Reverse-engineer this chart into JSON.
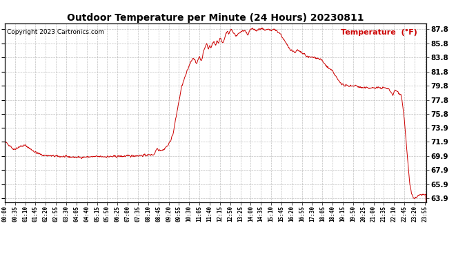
{
  "title": "Outdoor Temperature per Minute (24 Hours) 20230811",
  "copyright": "Copyright 2023 Cartronics.com",
  "legend_label": "Temperature  (°F)",
  "line_color": "#cc0000",
  "background_color": "#ffffff",
  "grid_color": "#b0b0b0",
  "yticks": [
    63.9,
    65.9,
    67.9,
    69.9,
    71.9,
    73.9,
    75.8,
    77.8,
    79.8,
    81.8,
    83.8,
    85.8,
    87.8
  ],
  "ymin": 63.4,
  "ymax": 88.6,
  "xtick_interval": 35,
  "keypoints": [
    [
      0,
      71.9
    ],
    [
      20,
      71.3
    ],
    [
      30,
      70.8
    ],
    [
      50,
      71.2
    ],
    [
      70,
      71.4
    ],
    [
      90,
      70.8
    ],
    [
      110,
      70.3
    ],
    [
      130,
      70.0
    ],
    [
      160,
      69.9
    ],
    [
      200,
      69.8
    ],
    [
      250,
      69.7
    ],
    [
      310,
      69.8
    ],
    [
      370,
      69.8
    ],
    [
      430,
      69.9
    ],
    [
      480,
      70.0
    ],
    [
      510,
      70.1
    ],
    [
      520,
      71.0
    ],
    [
      525,
      70.8
    ],
    [
      540,
      70.7
    ],
    [
      560,
      71.5
    ],
    [
      575,
      73.0
    ],
    [
      590,
      76.5
    ],
    [
      605,
      79.8
    ],
    [
      620,
      81.5
    ],
    [
      635,
      83.2
    ],
    [
      645,
      83.8
    ],
    [
      655,
      82.8
    ],
    [
      660,
      83.5
    ],
    [
      665,
      84.0
    ],
    [
      670,
      83.3
    ],
    [
      675,
      83.8
    ],
    [
      680,
      84.8
    ],
    [
      685,
      85.3
    ],
    [
      690,
      85.8
    ],
    [
      695,
      84.9
    ],
    [
      700,
      85.5
    ],
    [
      705,
      85.2
    ],
    [
      710,
      85.8
    ],
    [
      715,
      86.0
    ],
    [
      720,
      85.5
    ],
    [
      725,
      86.2
    ],
    [
      730,
      85.8
    ],
    [
      735,
      86.5
    ],
    [
      740,
      86.2
    ],
    [
      745,
      85.8
    ],
    [
      750,
      86.5
    ],
    [
      755,
      87.0
    ],
    [
      760,
      87.5
    ],
    [
      765,
      87.0
    ],
    [
      770,
      87.5
    ],
    [
      775,
      87.8
    ],
    [
      780,
      87.3
    ],
    [
      790,
      86.8
    ],
    [
      800,
      87.2
    ],
    [
      810,
      87.5
    ],
    [
      820,
      87.5
    ],
    [
      830,
      87.0
    ],
    [
      840,
      87.8
    ],
    [
      850,
      87.8
    ],
    [
      860,
      87.5
    ],
    [
      870,
      87.8
    ],
    [
      880,
      87.8
    ],
    [
      890,
      87.5
    ],
    [
      900,
      87.8
    ],
    [
      910,
      87.5
    ],
    [
      920,
      87.8
    ],
    [
      930,
      87.5
    ],
    [
      940,
      87.2
    ],
    [
      950,
      86.5
    ],
    [
      960,
      85.8
    ],
    [
      970,
      85.2
    ],
    [
      980,
      84.8
    ],
    [
      990,
      84.5
    ],
    [
      1000,
      84.8
    ],
    [
      1010,
      84.5
    ],
    [
      1020,
      84.3
    ],
    [
      1030,
      84.0
    ],
    [
      1040,
      83.8
    ],
    [
      1060,
      83.8
    ],
    [
      1080,
      83.5
    ],
    [
      1100,
      82.5
    ],
    [
      1120,
      81.8
    ],
    [
      1140,
      80.5
    ],
    [
      1160,
      79.8
    ],
    [
      1180,
      79.8
    ],
    [
      1200,
      79.8
    ],
    [
      1220,
      79.5
    ],
    [
      1240,
      79.5
    ],
    [
      1260,
      79.5
    ],
    [
      1280,
      79.5
    ],
    [
      1300,
      79.5
    ],
    [
      1315,
      79.2
    ],
    [
      1325,
      78.5
    ],
    [
      1335,
      79.2
    ],
    [
      1345,
      78.8
    ],
    [
      1355,
      78.5
    ],
    [
      1365,
      75.0
    ],
    [
      1375,
      70.0
    ],
    [
      1383,
      66.0
    ],
    [
      1390,
      64.5
    ],
    [
      1398,
      63.9
    ],
    [
      1405,
      64.0
    ],
    [
      1415,
      64.3
    ],
    [
      1425,
      64.5
    ],
    [
      1435,
      64.4
    ],
    [
      1439,
      64.4
    ]
  ]
}
